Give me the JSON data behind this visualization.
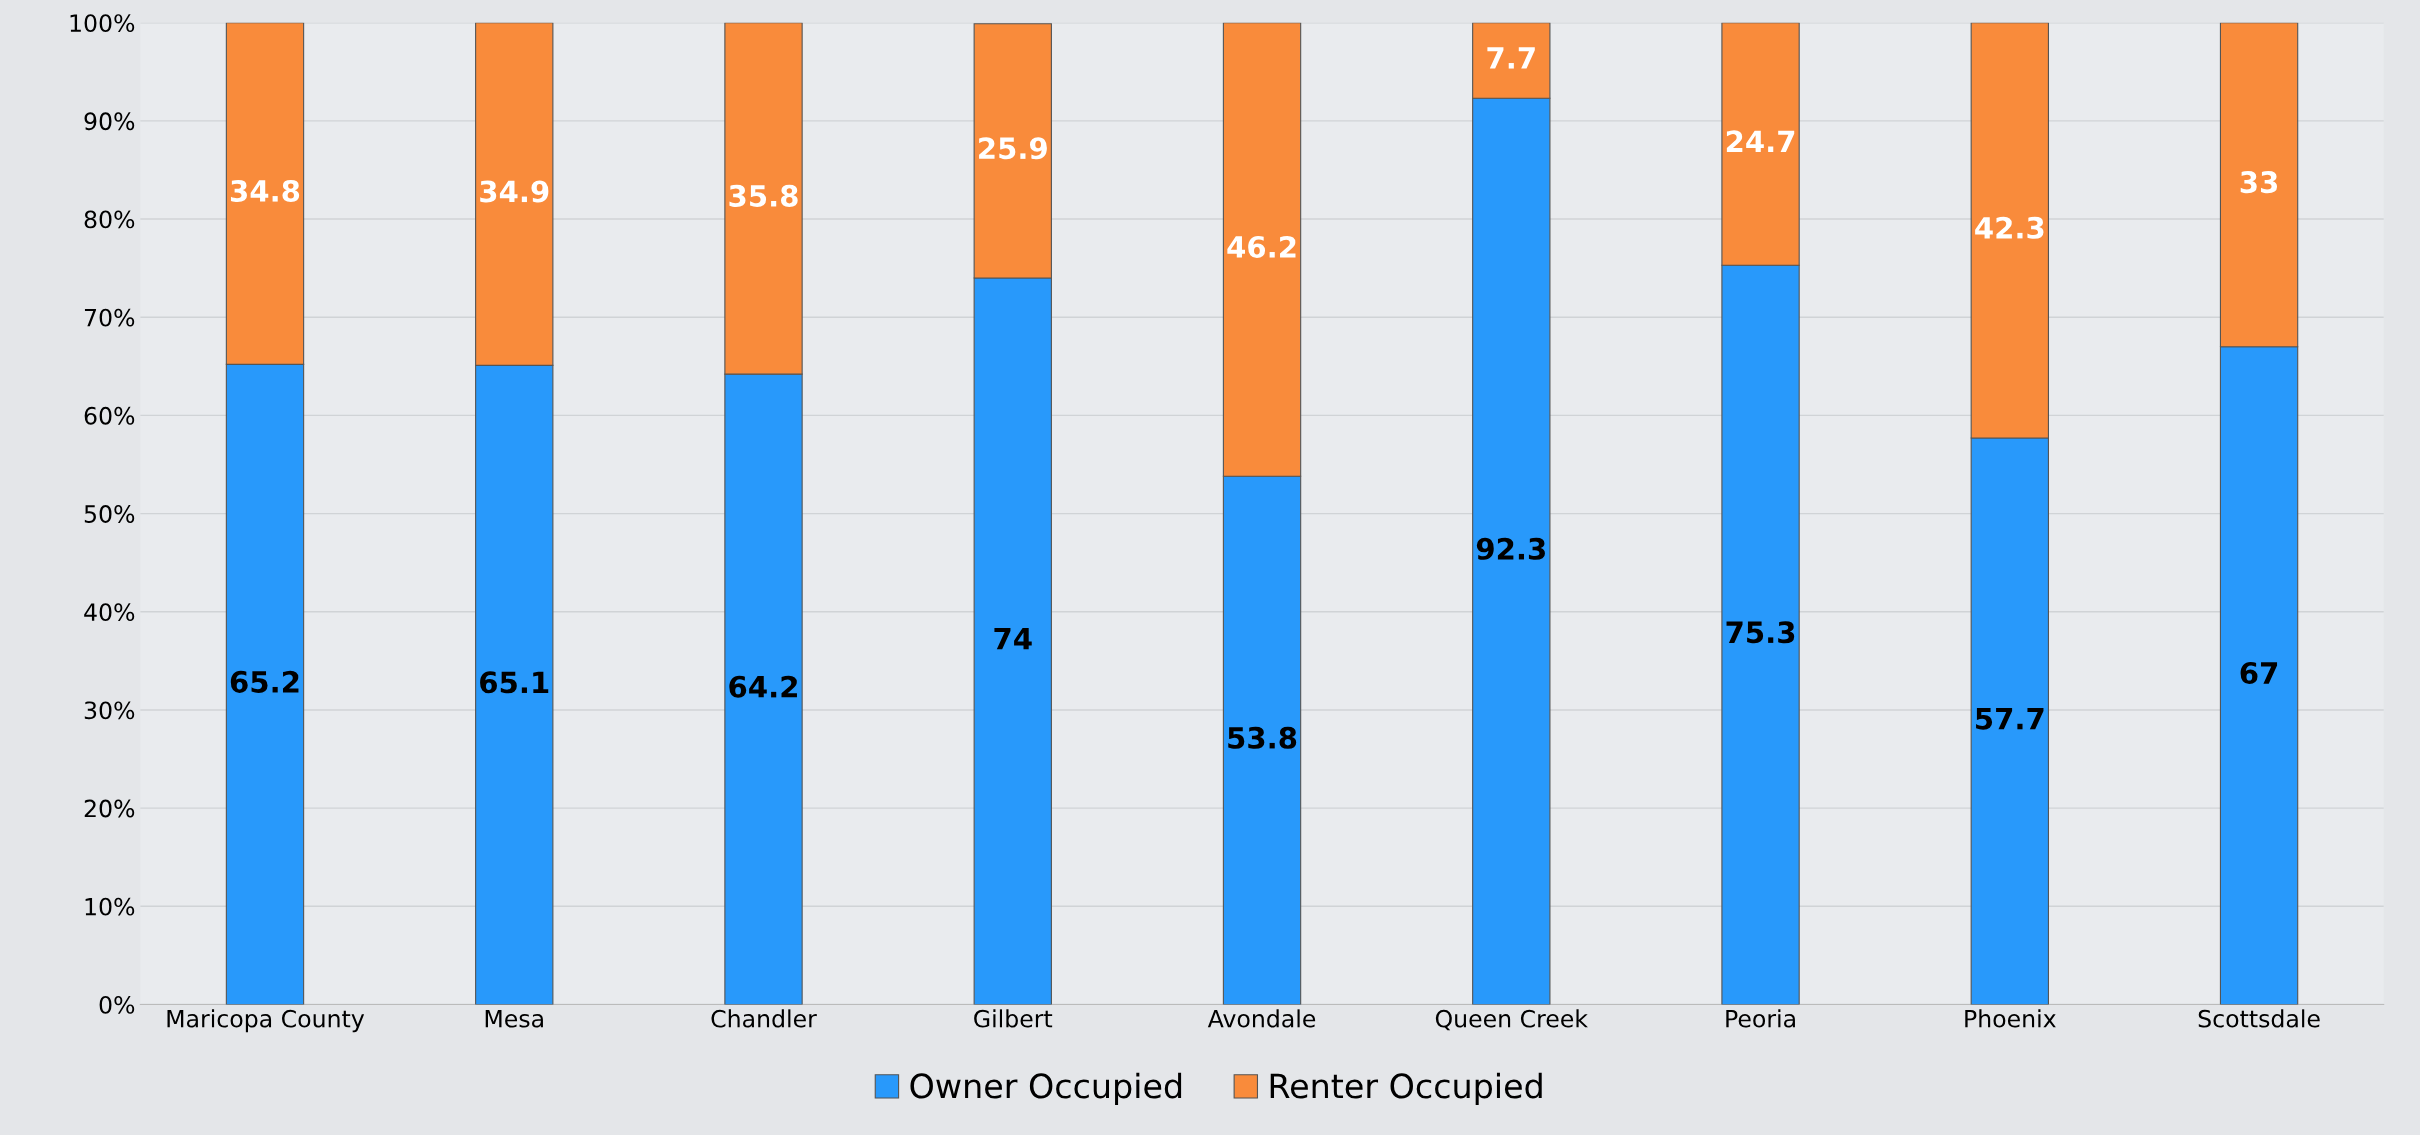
{
  "chart_data": {
    "type": "bar",
    "stacked": true,
    "categories": [
      "Maricopa County",
      "Mesa",
      "Chandler",
      "Gilbert",
      "Avondale",
      "Queen Creek",
      "Peoria",
      "Phoenix",
      "Scottsdale"
    ],
    "series": [
      {
        "name": "Owner Occupied",
        "color": "#2899fb",
        "values": [
          65.2,
          65.1,
          64.2,
          74,
          53.8,
          92.3,
          75.3,
          57.7,
          67
        ]
      },
      {
        "name": "Renter Occupied",
        "color": "#f98b3b",
        "values": [
          34.8,
          34.9,
          35.8,
          25.9,
          46.2,
          7.7,
          24.7,
          42.3,
          33
        ]
      }
    ],
    "ylim": [
      0,
      100
    ],
    "yticks": [
      {
        "value": 0,
        "label": "0%"
      },
      {
        "value": 10,
        "label": "10%"
      },
      {
        "value": 20,
        "label": "20%"
      },
      {
        "value": 30,
        "label": "30%"
      },
      {
        "value": 40,
        "label": "40%"
      },
      {
        "value": 50,
        "label": "50%"
      },
      {
        "value": 60,
        "label": "60%"
      },
      {
        "value": 70,
        "label": "70%"
      },
      {
        "value": 80,
        "label": "80%"
      },
      {
        "value": 90,
        "label": "90%"
      },
      {
        "value": 100,
        "label": "100%"
      }
    ],
    "grid": "y",
    "legend": "bottom",
    "data_labels": true
  }
}
